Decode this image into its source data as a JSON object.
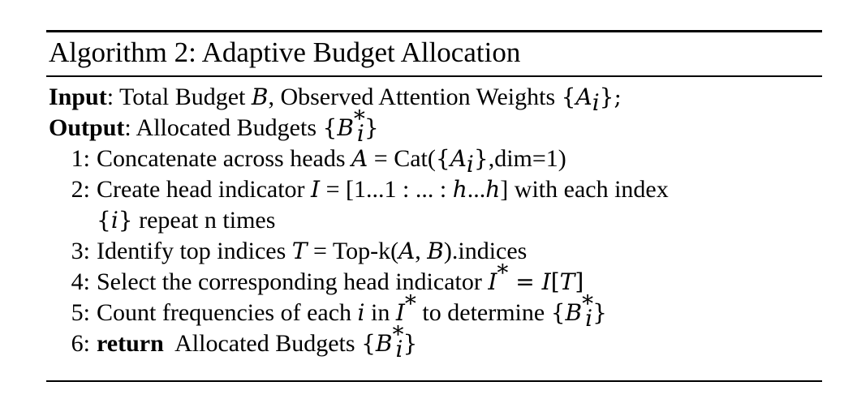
{
  "algorithm": {
    "title": "Algorithm 2: Adaptive Budget Allocation",
    "input_label": "Input",
    "input_text_a": ": Total Budget ",
    "input_var_B": "B",
    "input_text_b": ", Observed Attention Weights ",
    "input_set_open": "{",
    "input_var_A": "A",
    "input_sub_i": "i",
    "input_set_close": "};",
    "output_label": "Output",
    "output_text": ": Allocated Budgets ",
    "output_set_open": "{",
    "output_var_B": "B",
    "output_sup": "*",
    "output_sub": "i",
    "output_set_close": "}",
    "steps": [
      {
        "number": "1:",
        "t1": "Concatenate across heads ",
        "v1": "A",
        "t2": " = Cat(",
        "s1": "{",
        "v2": "A",
        "sub1": "i",
        "s2": "}",
        "t3": ",dim=1)"
      },
      {
        "number": "2:",
        "t1": "Create head indicator ",
        "v1": "I",
        "t2": " = [1...1 : ... : ",
        "v2": "h",
        "t3": "...",
        "v3": "h",
        "t4": "] with each index",
        "cont_s1": "{",
        "cont_v1": "i",
        "cont_s2": "}",
        "cont_t1": " repeat n times"
      },
      {
        "number": "3:",
        "t1": "Identify top indices ",
        "v1": "T",
        "t2": " = Top-k(",
        "v2": "A",
        "t3": ", ",
        "v3": "B",
        "t4": ").indices"
      },
      {
        "number": "4:",
        "t1": "Select the corresponding head indicator ",
        "v1": "I",
        "sup1": "*",
        "t2": " = ",
        "v2": "I",
        "t3": "[",
        "v3": "T",
        "t4": "]"
      },
      {
        "number": "5:",
        "t1": "Count frequencies of each ",
        "v1": "i",
        "t2": " in ",
        "v2": "I",
        "sup1": "*",
        "t3": " to determine ",
        "s1": "{",
        "v3": "B",
        "sup2": "*",
        "sub2": "i",
        "s2": "}"
      },
      {
        "number": "6:",
        "kw": "return",
        "t1": "  Allocated Budgets ",
        "s1": "{",
        "v1": "B",
        "sup1": "*",
        "sub1": "i",
        "s2": "}"
      }
    ]
  }
}
